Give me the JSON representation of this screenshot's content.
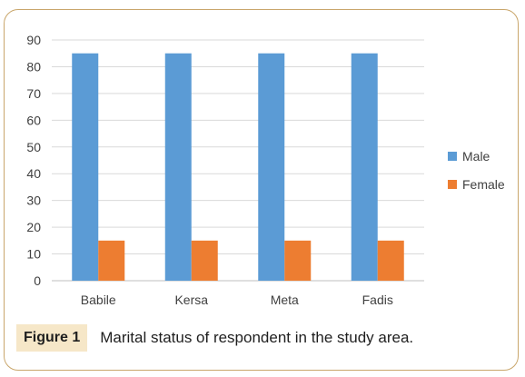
{
  "chart_data": {
    "type": "bar",
    "categories": [
      "Babile",
      "Kersa",
      "Meta",
      "Fadis"
    ],
    "series": [
      {
        "name": "Male",
        "values": [
          85,
          85,
          85,
          85
        ],
        "color": "#5b9bd5"
      },
      {
        "name": "Female",
        "values": [
          15,
          15,
          15,
          15
        ],
        "color": "#ed7d31"
      }
    ],
    "title": "",
    "xlabel": "",
    "ylabel": "",
    "ylim": [
      0,
      90
    ],
    "yticks": [
      0,
      10,
      20,
      30,
      40,
      50,
      60,
      70,
      80,
      90
    ],
    "grid": true,
    "legend_position": "right"
  },
  "caption": {
    "label": "Figure 1",
    "text": "Marital status of respondent in the study area."
  },
  "colors": {
    "frame_border": "#c9a66b",
    "caption_label_bg": "#f6e7c8",
    "gridline": "#d9d9d9"
  }
}
